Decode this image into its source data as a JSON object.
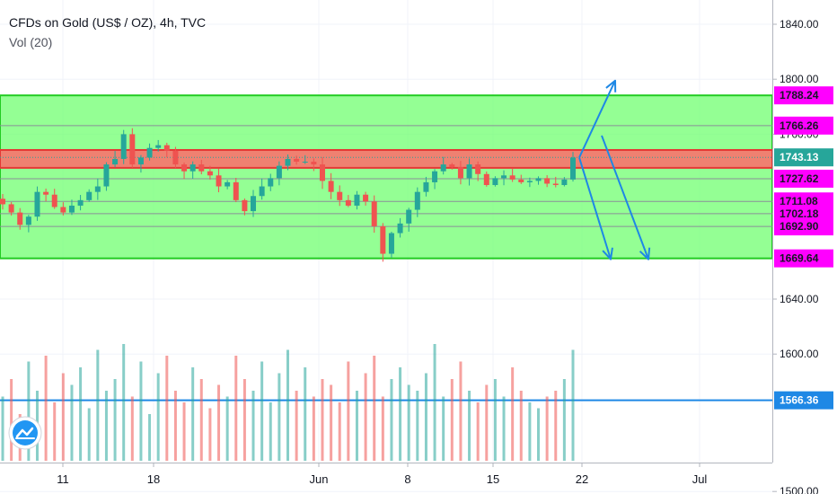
{
  "legend": {
    "title": "CFDs on Gold (US$ / OZ), 4h, TVC",
    "volume": "Vol (20)"
  },
  "colors": {
    "up": "#26a69a",
    "down": "#ef5350",
    "zone_green": "#66ff66",
    "zone_red": "#ff6b6b",
    "tag_magenta": "#ff00ff",
    "tag_current": "#26a69a",
    "arrow": "#1e88e5",
    "hline_blue": "#1e88e5"
  },
  "chart_data": {
    "type": "candlestick",
    "y_axis": {
      "range": [
        1480,
        1860
      ],
      "ticks": [
        {
          "value": 1500,
          "label": "1500.00"
        },
        {
          "value": 1600,
          "label": "1600.00"
        },
        {
          "value": 1640,
          "label": "1640.00"
        },
        {
          "value": 1760,
          "label": "1760.00"
        },
        {
          "value": 1800,
          "label": "1800.00"
        },
        {
          "value": 1840,
          "label": "1840.00"
        }
      ]
    },
    "x_axis": {
      "ticks": [
        "11",
        "18",
        "Jun",
        "8",
        "15",
        "22",
        "Jul"
      ]
    },
    "price_tags": [
      {
        "value": 1788.24,
        "label": "1788.24",
        "style": "magenta"
      },
      {
        "value": 1766.26,
        "label": "1766.26",
        "style": "magenta"
      },
      {
        "value": 1743.13,
        "label": "1743.13",
        "style": "current"
      },
      {
        "value": 1727.62,
        "label": "1727.62",
        "style": "magenta"
      },
      {
        "value": 1711.08,
        "label": "1711.08",
        "style": "magenta"
      },
      {
        "value": 1702.18,
        "label": "1702.18",
        "style": "magenta"
      },
      {
        "value": 1692.9,
        "label": "1692.90",
        "style": "magenta"
      },
      {
        "value": 1669.64,
        "label": "1669.64",
        "style": "magenta"
      },
      {
        "value": 1566.36,
        "label": "1566.36",
        "style": "blue"
      }
    ],
    "zones": [
      {
        "name": "resistance-green-zone",
        "top": 1788.24,
        "bottom": 1669.64,
        "color": "green"
      },
      {
        "name": "resistance-red-zone",
        "top": 1748.5,
        "bottom": 1735.5,
        "color": "red"
      }
    ],
    "horizontal_lines": [
      1766.26,
      1727.62,
      1711.08,
      1702.18,
      1692.9
    ],
    "support_line": 1566.36,
    "current_price": 1743.13,
    "price_path": [
      1709,
      1703,
      1694,
      1700,
      1718,
      1716,
      1707,
      1703,
      1708,
      1712,
      1718,
      1722,
      1738,
      1742,
      1760,
      1738,
      1743,
      1750,
      1752,
      1748,
      1738,
      1733,
      1738,
      1733,
      1730,
      1722,
      1725,
      1712,
      1704,
      1715,
      1722,
      1728,
      1737,
      1742,
      1740,
      1740,
      1738,
      1726,
      1718,
      1712,
      1708,
      1716,
      1711,
      1693,
      1673,
      1688,
      1695,
      1705,
      1718,
      1725,
      1733,
      1738,
      1736,
      1728,
      1738,
      1731,
      1723,
      1728,
      1730,
      1727,
      1725,
      1726,
      1728,
      1724,
      1723,
      1727,
      1743
    ],
    "volume_heights": [
      0.55,
      0.7,
      0.4,
      0.85,
      0.6,
      0.9,
      0.5,
      0.75,
      0.65,
      0.8,
      0.45,
      0.95,
      0.6,
      0.7,
      1.0,
      0.55,
      0.85,
      0.4,
      0.75,
      0.9,
      0.6,
      0.5,
      0.8,
      0.7,
      0.45,
      0.65,
      0.55,
      0.9,
      0.7,
      0.6,
      0.85,
      0.5,
      0.75,
      0.95,
      0.6,
      0.8,
      0.55,
      0.7,
      0.65,
      0.5,
      0.85,
      0.6,
      0.75,
      0.9,
      0.55,
      0.7,
      0.8,
      0.65,
      0.6,
      0.75,
      1.0,
      0.55,
      0.7,
      0.85,
      0.6,
      0.5,
      0.65,
      0.7,
      0.55,
      0.8,
      0.6,
      0.5,
      0.45,
      0.55,
      0.6,
      0.7,
      0.95
    ],
    "projections": [
      {
        "name": "projection-up-arrow",
        "from": [
          645,
          1743
        ],
        "to": [
          685,
          1799
        ]
      },
      {
        "name": "projection-down-arrow-short",
        "from": [
          645,
          1743
        ],
        "to": [
          680,
          1669
        ]
      },
      {
        "name": "projection-down-arrow-long",
        "from": [
          670,
          1759
        ],
        "to": [
          722,
          1669
        ]
      }
    ]
  }
}
